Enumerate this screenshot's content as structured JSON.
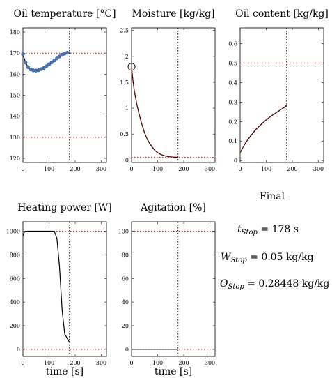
{
  "chart_data": [
    {
      "type": "line",
      "title": "Oil temperature [°C]",
      "xlim": [
        0,
        320
      ],
      "ylim": [
        118,
        182
      ],
      "xticks": [
        0,
        100,
        200,
        300
      ],
      "yticks": [
        120,
        130,
        140,
        150,
        160,
        170,
        180
      ],
      "xlabel": "",
      "stop_time": 178,
      "ref_lines": [
        170,
        130
      ],
      "series": [
        {
          "role": "measured",
          "color": "#000000",
          "x": [
            0,
            10,
            20,
            30,
            40,
            50,
            60,
            70,
            80,
            90,
            100,
            110,
            120,
            130,
            140,
            150,
            160,
            170,
            178
          ],
          "y": [
            169.5,
            165.5,
            163.3,
            162.2,
            161.8,
            161.7,
            161.9,
            162.4,
            163.0,
            163.8,
            164.7,
            165.6,
            166.5,
            167.5,
            168.4,
            169.2,
            169.8,
            170.2,
            170.4
          ]
        },
        {
          "role": "markers",
          "color": "#4a74b8",
          "x": [
            0,
            10,
            20,
            30,
            40,
            50,
            60,
            70,
            80,
            90,
            100,
            110,
            120,
            130,
            140,
            150,
            160,
            170
          ],
          "y": [
            169.5,
            165.5,
            163.3,
            162.2,
            161.8,
            161.7,
            161.9,
            162.4,
            163.0,
            163.8,
            164.7,
            165.6,
            166.5,
            167.5,
            168.4,
            169.2,
            169.8,
            170.2
          ]
        }
      ]
    },
    {
      "type": "line",
      "title": "Moisture [kg/kg]",
      "xlim": [
        0,
        320
      ],
      "ylim": [
        -0.05,
        2.55
      ],
      "xticks": [
        0,
        100,
        200,
        300
      ],
      "yticks": [
        0,
        0.5,
        1,
        1.5,
        2,
        2.5
      ],
      "xlabel": "",
      "stop_time": 178,
      "ref_lines": [
        0.05
      ],
      "start_marker": {
        "x": 0,
        "y": 1.8
      },
      "series": [
        {
          "role": "measured",
          "color": "#000000",
          "x": [
            0,
            5,
            10,
            20,
            30,
            40,
            50,
            60,
            70,
            80,
            90,
            100,
            110,
            120,
            130,
            140,
            150,
            160,
            170,
            178
          ],
          "y": [
            1.8,
            1.55,
            1.35,
            1.08,
            0.86,
            0.68,
            0.52,
            0.4,
            0.31,
            0.24,
            0.18,
            0.14,
            0.11,
            0.09,
            0.075,
            0.065,
            0.06,
            0.055,
            0.052,
            0.05
          ]
        },
        {
          "role": "model",
          "color": "#cc0000",
          "x": [
            0,
            5,
            10,
            20,
            30,
            40,
            50,
            60,
            70,
            80,
            90,
            100,
            110,
            120,
            130,
            140,
            150,
            160,
            170,
            178
          ],
          "y": [
            1.8,
            1.56,
            1.36,
            1.09,
            0.87,
            0.69,
            0.53,
            0.41,
            0.32,
            0.25,
            0.19,
            0.145,
            0.115,
            0.093,
            0.078,
            0.067,
            0.061,
            0.056,
            0.053,
            0.05
          ]
        }
      ]
    },
    {
      "type": "line",
      "title": "Oil content [kg/kg]",
      "xlim": [
        0,
        320
      ],
      "ylim": [
        -0.01,
        0.68
      ],
      "xticks": [
        0,
        100,
        200,
        300
      ],
      "yticks": [
        0,
        0.1,
        0.2,
        0.3,
        0.4,
        0.5,
        0.6
      ],
      "xlabel": "",
      "stop_time": 178,
      "ref_lines": [
        0.5
      ],
      "series": [
        {
          "role": "measured",
          "color": "#000000",
          "x": [
            0,
            10,
            20,
            30,
            40,
            50,
            60,
            70,
            80,
            90,
            100,
            110,
            120,
            130,
            140,
            150,
            160,
            170,
            178
          ],
          "y": [
            0.04,
            0.065,
            0.088,
            0.108,
            0.126,
            0.143,
            0.158,
            0.172,
            0.185,
            0.197,
            0.208,
            0.219,
            0.229,
            0.238,
            0.247,
            0.256,
            0.265,
            0.274,
            0.284
          ]
        },
        {
          "role": "model",
          "color": "#cc0000",
          "x": [
            0,
            10,
            20,
            30,
            40,
            50,
            60,
            70,
            80,
            90,
            100,
            110,
            120,
            130,
            140,
            150,
            160,
            170,
            178
          ],
          "y": [
            0.042,
            0.066,
            0.09,
            0.11,
            0.127,
            0.145,
            0.16,
            0.173,
            0.186,
            0.198,
            0.209,
            0.22,
            0.23,
            0.239,
            0.248,
            0.257,
            0.266,
            0.275,
            0.284
          ]
        }
      ]
    },
    {
      "type": "line",
      "title": "Heating power [W]",
      "xlim": [
        0,
        320
      ],
      "ylim": [
        -60,
        1080
      ],
      "xticks": [
        0,
        100,
        200,
        300
      ],
      "yticks": [
        0,
        200,
        400,
        600,
        800,
        1000
      ],
      "xlabel": "time [s]",
      "stop_time": 178,
      "ref_lines": [
        1000,
        0
      ],
      "series": [
        {
          "role": "measured",
          "color": "#000000",
          "x": [
            0,
            5,
            10,
            120,
            130,
            140,
            150,
            160,
            170,
            178
          ],
          "y": [
            960,
            990,
            1000,
            1000,
            940,
            700,
            330,
            130,
            90,
            60
          ]
        }
      ]
    },
    {
      "type": "line",
      "title": "Agitation [%]",
      "xlim": [
        0,
        320
      ],
      "ylim": [
        -6,
        108
      ],
      "xticks": [
        0,
        100,
        200,
        300
      ],
      "yticks": [
        0,
        20,
        40,
        60,
        80,
        100
      ],
      "xlabel": "time [s]",
      "stop_time": 178,
      "ref_lines": [
        100,
        0
      ],
      "series": [
        {
          "role": "measured",
          "color": "#000000",
          "x": [
            0,
            178
          ],
          "y": [
            0,
            0
          ]
        }
      ]
    }
  ],
  "final": {
    "title": "Final",
    "t_stop": {
      "symbol": "t",
      "sub": "Stop",
      "value": "= 178 s"
    },
    "w_stop": {
      "symbol": "W",
      "sub": "Stop",
      "value": "= 0.05 kg/kg"
    },
    "o_stop": {
      "symbol": "O",
      "sub": "Stop",
      "value": "= 0.28448 kg/kg"
    }
  },
  "colors": {
    "reference_line": "#cc0000",
    "stop_line": "#000000",
    "marker": "#4a74b8"
  }
}
